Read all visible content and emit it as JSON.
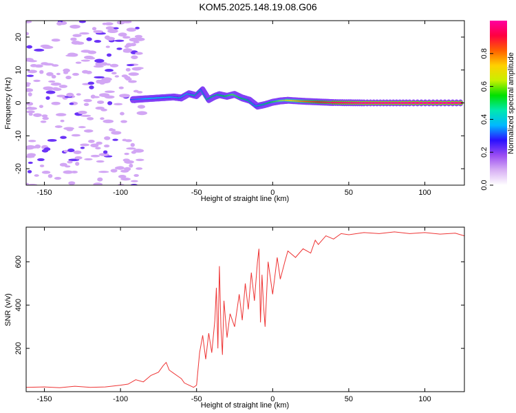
{
  "title": "KOM5.2025.148.19.08.G06",
  "chart_data": [
    {
      "type": "heatmap",
      "xlabel": "Height of straight line (km)",
      "ylabel": "Frequency (Hz)",
      "xlim": [
        -162,
        126
      ],
      "ylim": [
        -25,
        25
      ],
      "x_ticks": [
        -150,
        -100,
        -50,
        0,
        50,
        100
      ],
      "y_ticks": [
        -20,
        -10,
        0,
        10,
        20
      ],
      "colorbar": {
        "label": "Normalized spectral amplitude",
        "range": [
          0,
          1
        ],
        "ticks": [
          0.0,
          0.2,
          0.4,
          0.6,
          0.8
        ],
        "colors": [
          "#ffffff",
          "#d8b0f4",
          "#9a4cf2",
          "#2a10ff",
          "#00b8ff",
          "#00e8b0",
          "#00e000",
          "#c8f000",
          "#ffd000",
          "#ff6000",
          "#ff0040",
          "#ff00a0"
        ]
      },
      "ridge": {
        "x": [
          -92,
          -85,
          -75,
          -65,
          -60,
          -55,
          -50,
          -46,
          -42,
          -38,
          -35,
          -30,
          -25,
          -20,
          -15,
          -10,
          -5,
          0,
          5,
          10,
          20,
          30,
          40,
          60,
          90,
          126
        ],
        "y": [
          1.0,
          1.2,
          1.5,
          1.8,
          1.5,
          2.8,
          2.2,
          4.0,
          1.0,
          2.0,
          2.5,
          2.0,
          2.6,
          1.5,
          0.8,
          -1.0,
          -0.5,
          0.2,
          0.6,
          0.8,
          0.5,
          0.3,
          0.1,
          0.0,
          0.0,
          0.0
        ],
        "amplitude": [
          0.3,
          0.35,
          0.4,
          0.4,
          0.45,
          0.4,
          0.5,
          0.45,
          0.5,
          0.55,
          0.5,
          0.55,
          0.6,
          0.55,
          0.5,
          0.45,
          0.5,
          0.55,
          0.6,
          0.7,
          0.8,
          0.9,
          0.95,
          1.0,
          1.0,
          1.0
        ]
      }
    },
    {
      "type": "line",
      "xlabel": "Height of straight line (km)",
      "ylabel": "SNR (v/v)",
      "xlim": [
        -162,
        126
      ],
      "ylim": [
        0,
        760
      ],
      "x_ticks": [
        -150,
        -100,
        -50,
        0,
        50,
        100
      ],
      "y_ticks": [
        200,
        400,
        600
      ],
      "line_color": "#ee3333",
      "series": [
        {
          "x": [
            -162,
            -150,
            -140,
            -130,
            -120,
            -110,
            -100,
            -95,
            -90,
            -85,
            -80,
            -75,
            -72,
            -70,
            -68,
            -65,
            -62,
            -60,
            -58,
            -55,
            -52,
            -50,
            -48,
            -46,
            -44,
            -42,
            -40,
            -38,
            -37,
            -36,
            -35,
            -34,
            -33,
            -32,
            -30,
            -28,
            -25,
            -22,
            -20,
            -18,
            -16,
            -14,
            -12,
            -10,
            -9,
            -8,
            -7,
            -6,
            -5,
            -3,
            0,
            3,
            5,
            8,
            10,
            15,
            20,
            25,
            28,
            30,
            35,
            40,
            45,
            50,
            60,
            70,
            80,
            90,
            100,
            110,
            120,
            126
          ],
          "y": [
            20,
            22,
            18,
            25,
            20,
            22,
            30,
            35,
            55,
            45,
            75,
            90,
            120,
            135,
            100,
            85,
            70,
            60,
            40,
            30,
            20,
            30,
            180,
            260,
            150,
            270,
            180,
            330,
            480,
            200,
            580,
            300,
            170,
            420,
            250,
            360,
            300,
            450,
            330,
            500,
            380,
            550,
            420,
            600,
            660,
            320,
            540,
            400,
            300,
            600,
            450,
            620,
            520,
            600,
            650,
            620,
            660,
            640,
            700,
            680,
            720,
            705,
            730,
            725,
            735,
            730,
            738,
            730,
            735,
            728,
            732,
            720
          ]
        }
      ]
    }
  ]
}
